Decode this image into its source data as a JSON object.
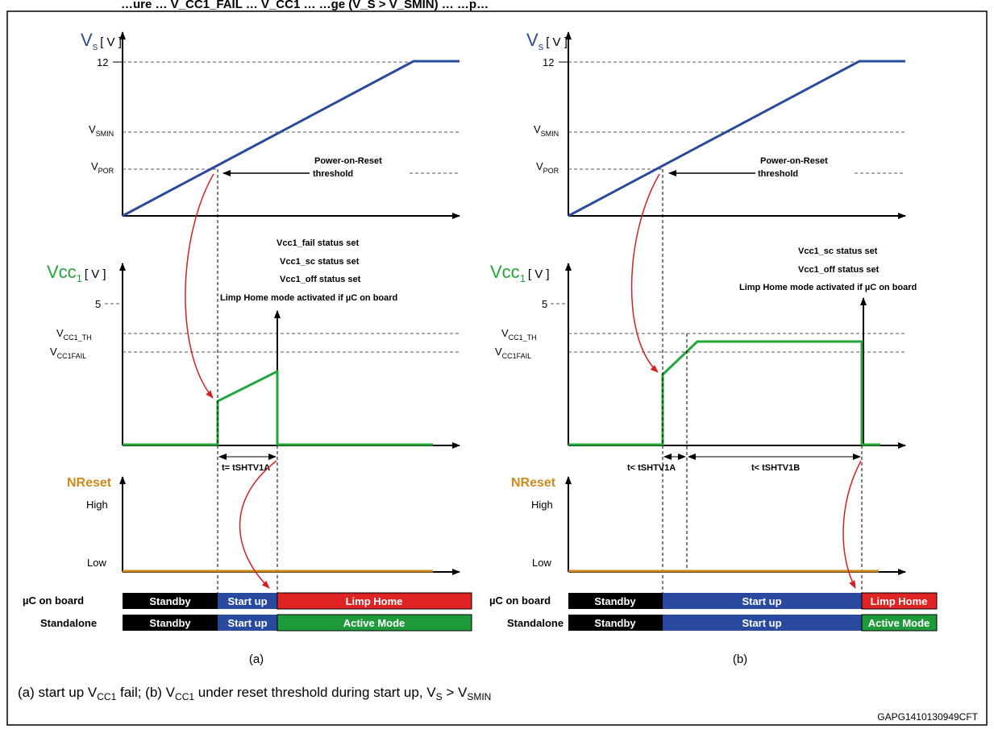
{
  "header": {
    "fragment": "…ure … V_CC1_FAIL … V_CC1 … …ge (V_S > V_SMIN) … …p…"
  },
  "colors": {
    "vs": "#2a4a9a",
    "vcc": "#22a63a",
    "nreset": "#cc8a1e",
    "arrow": "#d42020",
    "standby": "#000000",
    "startup": "#2a4aa0",
    "limp": "#e02424",
    "active": "#1e9a3a"
  },
  "labels": {
    "vs_main": "V",
    "vs_sub": "s",
    "unit": "[ V ]",
    "vcc_main": "Vcc",
    "vcc_sub": "1",
    "nreset": "NReset",
    "tick_12": "12",
    "tick_5": "5",
    "high": "High",
    "low": "Low",
    "vsmin_main": "V",
    "vsmin_sub": "SMIN",
    "vpor_main": "V",
    "vpor_sub": "POR",
    "vccth_main": "V",
    "vccth_sub": "CC1_TH",
    "vccfail_main": "V",
    "vccfail_sub": "CC1FAIL",
    "por_line1": "Power-on-Reset",
    "por_line2": "threshold",
    "row_uc": "µC on board",
    "row_standalone": "Standalone",
    "standby": "Standby",
    "startup": "Start up",
    "limp": "Limp Home",
    "active": "Active Mode"
  },
  "panel_a": {
    "status_lines": [
      "Vcc1_fail status set",
      "Vcc1_sc status set",
      "Vcc1_off status set",
      "Limp Home mode activated if µC on board"
    ],
    "timing": "t= tSHTV1A",
    "tag": "(a)"
  },
  "panel_b": {
    "status_lines": [
      "Vcc1_sc status set",
      "Vcc1_off status set",
      "Limp Home mode activated if µC on board"
    ],
    "timing_1": "t< tSHTV1A",
    "timing_2": "t< tSHTV1B",
    "tag": "(b)"
  },
  "caption": {
    "p1": "(a) start up V",
    "s1": "CC1",
    "p2": " fail; (b) V",
    "s2": "CC1",
    "p3": " under reset threshold during start up, V",
    "s3": "S",
    "p4": " > V",
    "s4": "SMIN"
  },
  "figure_id": "GAPG1410130949CFT"
}
